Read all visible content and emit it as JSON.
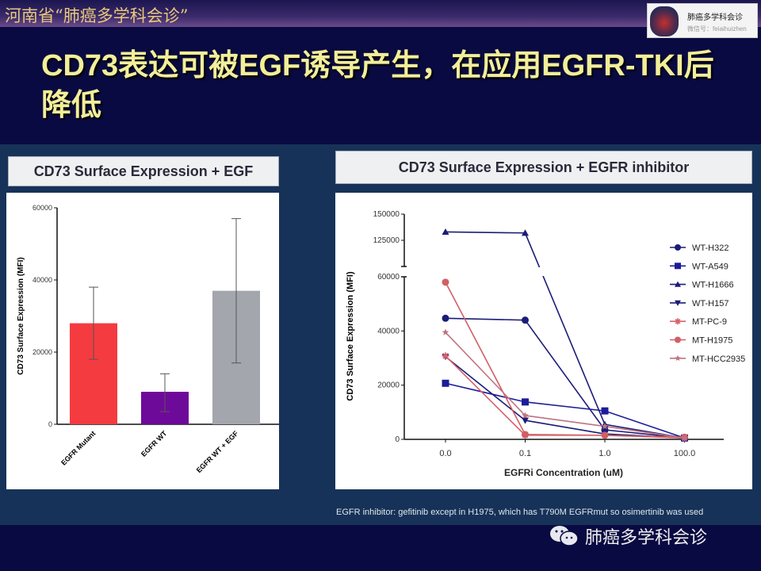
{
  "header": {
    "org": "河南省“肺癌多学科会诊”"
  },
  "logo": {
    "name": "肺癌多学科会诊",
    "wechat_id": "微信号：feiaihuizhen"
  },
  "slide_title": "CD73表达可被EGF诱导产生，在应用EGFR-TKI后降低",
  "footnote": "EGFR inhibitor: gefitinib except in H1975, which has T790M EGFRmut so osimertinib was used",
  "watermark": "肺癌多学科会诊",
  "chart_data": [
    {
      "type": "bar",
      "title": "CD73 Surface Expression + EGF",
      "ylabel": "CD73 Surface Expression (MFI)",
      "xlabel": "",
      "categories": [
        "EGFR Mutant",
        "EGFR WT",
        "EGFR WT + EGF"
      ],
      "values": [
        28000,
        9000,
        37000
      ],
      "error_low": [
        18000,
        3500,
        17000
      ],
      "error_high": [
        38000,
        14000,
        57000
      ],
      "colors": [
        "#f43b40",
        "#6e0a9a",
        "#a4a6ae"
      ],
      "ylim": [
        0,
        60000
      ],
      "yticks": [
        "0",
        "20000",
        "40000",
        "60000"
      ]
    },
    {
      "type": "line",
      "title": "CD73 Surface Expression + EGFR inhibitor",
      "ylabel": "CD73 Surface Expression (MFI)",
      "xlabel": "EGFRi Concentration (uM)",
      "categories": [
        "0.0",
        "0.1",
        "1.0",
        "100.0"
      ],
      "yticks_lower": [
        "0",
        "20000",
        "40000",
        "60000"
      ],
      "yticks_upper": [
        "125000",
        "150000"
      ],
      "axis_break": [
        60000,
        110000
      ],
      "legend_position": "right",
      "series": [
        {
          "name": "WT-H322",
          "marker": "circle",
          "color": "#1c1c78",
          "values": [
            44700,
            44000,
            3500,
            500
          ]
        },
        {
          "name": "WT-A549",
          "marker": "square",
          "color": "#1c1c9a",
          "values": [
            20700,
            13800,
            10500,
            500
          ]
        },
        {
          "name": "WT-H1666",
          "marker": "triangle",
          "color": "#1c1c78",
          "values": [
            133000,
            132000,
            5500,
            500
          ]
        },
        {
          "name": "WT-H157",
          "marker": "triangle-down",
          "color": "#1c1c78",
          "values": [
            30500,
            7000,
            2000,
            500
          ]
        },
        {
          "name": "MT-PC-9",
          "marker": "asterisk",
          "color": "#d8606a",
          "values": [
            30800,
            1500,
            1500,
            500
          ]
        },
        {
          "name": "MT-H1975",
          "marker": "circle",
          "color": "#d06066",
          "values": [
            58000,
            1800,
            1500,
            800
          ]
        },
        {
          "name": "MT-HCC2935",
          "marker": "star",
          "color": "#c07482",
          "values": [
            39500,
            8800,
            4800,
            500
          ]
        }
      ]
    }
  ]
}
